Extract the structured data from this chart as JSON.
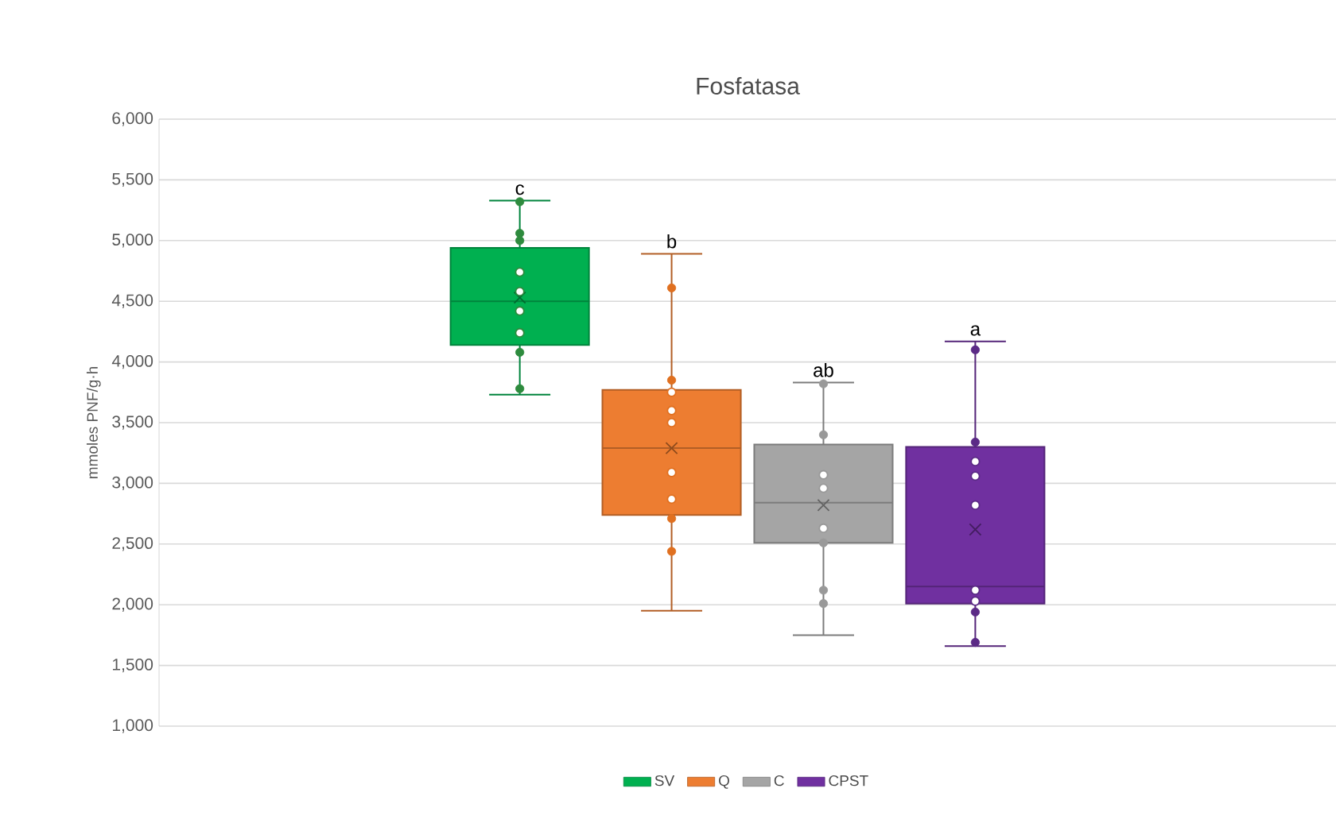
{
  "chart_data": {
    "type": "box",
    "title": "Fosfatasa",
    "ylabel": "mmoles PNF/g·h",
    "categories": [
      null
    ],
    "ylim": [
      1000,
      6000
    ],
    "yticks": [
      {
        "value": 1000,
        "label": "1,000"
      },
      {
        "value": 1500,
        "label": "1,500"
      },
      {
        "value": 2000,
        "label": "2,000"
      },
      {
        "value": 2500,
        "label": "2,500"
      },
      {
        "value": 3000,
        "label": "3,000"
      },
      {
        "value": 3500,
        "label": "3,500"
      },
      {
        "value": 4000,
        "label": "4,000"
      },
      {
        "value": 4500,
        "label": "4,500"
      },
      {
        "value": 5000,
        "label": "5,000"
      },
      {
        "value": 5500,
        "label": "5,500"
      },
      {
        "value": 6000,
        "label": "6,000"
      }
    ],
    "tick_labels": "y",
    "grid": "y",
    "legend": "bottom",
    "series": [
      {
        "type": "box",
        "name": "SV",
        "color": "#00b050",
        "boxes": [
          {
            "low": 3730,
            "q1": 4140,
            "median": 4500,
            "q3": 4940,
            "high": 5330,
            "mean": 4530
          }
        ]
      },
      {
        "type": "box",
        "name": "Q",
        "color": "#ed7d31",
        "boxes": [
          {
            "low": 1950,
            "q1": 2740,
            "median": 3290,
            "q3": 3770,
            "high": 4890,
            "mean": 3290
          }
        ]
      },
      {
        "type": "box",
        "name": "C",
        "color": "#a5a5a5",
        "boxes": [
          {
            "low": 1750,
            "q1": 2510,
            "median": 2840,
            "q3": 3320,
            "high": 3830,
            "mean": 2820
          }
        ]
      },
      {
        "type": "box",
        "name": "CPST",
        "color": "#7030a0",
        "boxes": [
          {
            "low": 1660,
            "q1": 2010,
            "median": 2150,
            "q3": 3300,
            "high": 4170,
            "mean": 2620
          }
        ]
      },
      {
        "type": "scatter",
        "color": "#2e8b3e",
        "marker": "circle",
        "x": [
          null,
          null,
          null,
          null,
          null,
          null,
          null,
          null,
          null
        ],
        "values": [
          5320,
          5060,
          5000,
          4740,
          4580,
          4420,
          4240,
          4080,
          3780
        ]
      },
      {
        "type": "scatter",
        "color": "#e07020",
        "marker": "circle",
        "x": [
          null,
          null,
          null,
          null,
          null,
          null,
          null,
          null,
          null
        ],
        "values": [
          4610,
          3850,
          3750,
          3600,
          3500,
          3090,
          2870,
          2710,
          2440
        ]
      },
      {
        "type": "scatter",
        "color": "#999999",
        "marker": "circle",
        "x": [
          null,
          null,
          null,
          null,
          null,
          null,
          null,
          null
        ],
        "values": [
          3820,
          3400,
          3070,
          2960,
          2630,
          2510,
          2120,
          2010
        ]
      },
      {
        "type": "scatter",
        "color": "#5b2a86",
        "marker": "circle",
        "x": [
          null,
          null,
          null,
          null,
          null,
          null,
          null,
          null,
          null
        ],
        "values": [
          4100,
          3340,
          3180,
          3060,
          2820,
          2120,
          2030,
          1940,
          1690
        ]
      }
    ],
    "annotations": [
      "c",
      "b",
      "ab",
      "a"
    ]
  }
}
